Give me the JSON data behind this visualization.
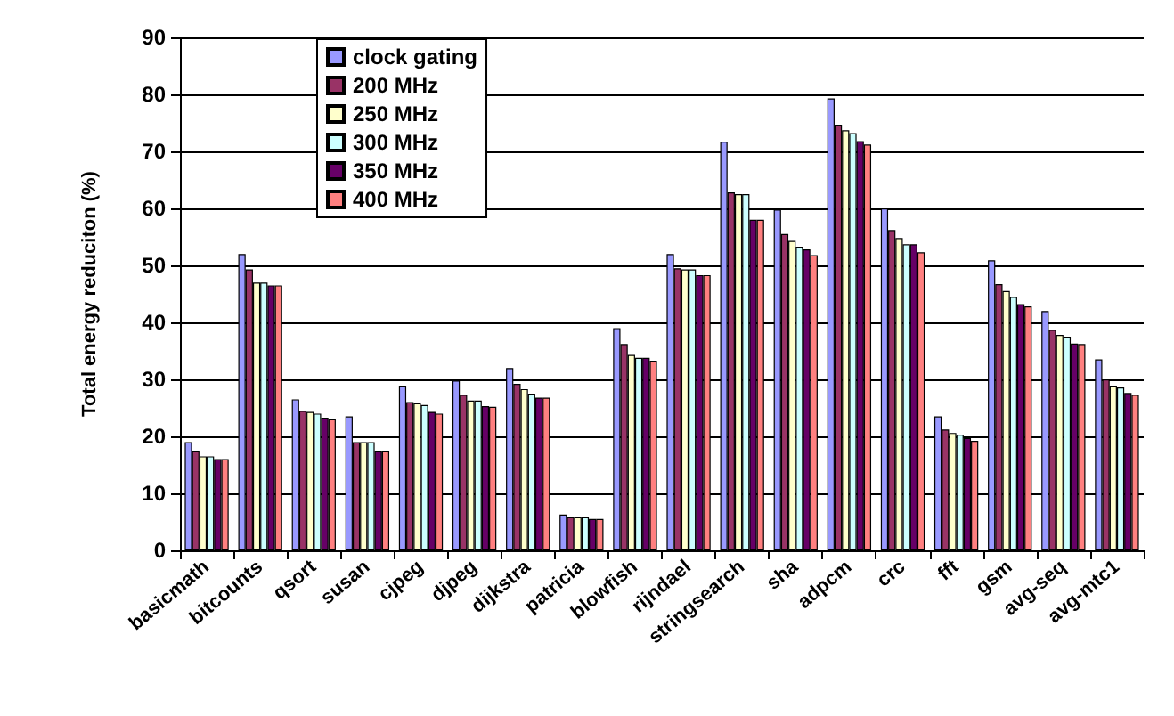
{
  "chart_data": {
    "type": "bar",
    "ylabel": "Total energy reduciton (%)",
    "categories": [
      "basicmath",
      "bitcounts",
      "qsort",
      "susan",
      "cjpeg",
      "djpeg",
      "dijkstra",
      "patricia",
      "blowfish",
      "rijndael",
      "stringsearch",
      "sha",
      "adpcm",
      "crc",
      "fft",
      "gsm",
      "avg-seq",
      "avg-mtc1"
    ],
    "series": [
      {
        "name": "clock gating",
        "color": "#9999ff",
        "values": [
          19,
          52,
          26.5,
          23.5,
          28.8,
          29.8,
          32,
          6.3,
          39,
          52,
          71.7,
          59.8,
          79.3,
          60,
          23.5,
          50.9,
          42,
          33.5
        ]
      },
      {
        "name": "200 MHz",
        "color": "#993366",
        "values": [
          17.5,
          49.3,
          24.5,
          19,
          26,
          27.3,
          29.2,
          5.8,
          36.2,
          49.5,
          62.8,
          55.5,
          74.7,
          56.2,
          21.2,
          46.7,
          38.7,
          30
        ]
      },
      {
        "name": "250 MHz",
        "color": "#ffffcc",
        "values": [
          16.5,
          47,
          24.3,
          19,
          25.8,
          26.3,
          28.3,
          5.8,
          34.3,
          49.3,
          62.5,
          54.3,
          73.7,
          54.8,
          20.6,
          45.5,
          37.8,
          28.8
        ]
      },
      {
        "name": "300 MHz",
        "color": "#ccffff",
        "values": [
          16.5,
          47,
          24,
          19,
          25.5,
          26.3,
          27.5,
          5.8,
          33.8,
          49.3,
          62.5,
          53.3,
          73.2,
          53.7,
          20.3,
          44.5,
          37.5,
          28.6
        ]
      },
      {
        "name": "350 MHz",
        "color": "#660066",
        "values": [
          16,
          46.5,
          23.3,
          17.5,
          24.3,
          25.3,
          26.8,
          5.5,
          33.8,
          48.3,
          58,
          52.8,
          71.8,
          53.7,
          19.7,
          43.2,
          36.3,
          27.6
        ]
      },
      {
        "name": "400 MHz",
        "color": "#ff8080",
        "values": [
          16,
          46.5,
          23,
          17.5,
          24,
          25.2,
          26.8,
          5.5,
          33.3,
          48.3,
          58,
          51.8,
          71.2,
          52.3,
          19.2,
          42.8,
          36.2,
          27.3
        ]
      }
    ],
    "ylim": [
      0,
      90
    ],
    "yticks": [
      0,
      10,
      20,
      30,
      40,
      50,
      60,
      70,
      80,
      90
    ],
    "grid": "y",
    "legend": "top left"
  }
}
